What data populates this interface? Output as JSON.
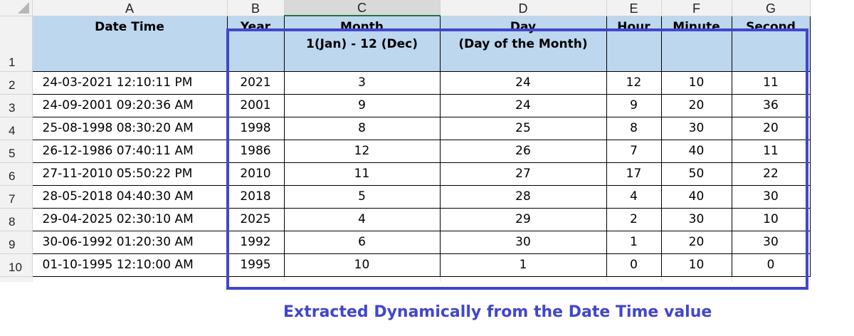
{
  "columns": [
    "A",
    "B",
    "C",
    "D",
    "E",
    "F",
    "G"
  ],
  "selected_column": "C",
  "row_numbers": [
    "1",
    "2",
    "3",
    "4",
    "5",
    "6",
    "7",
    "8",
    "9",
    "10"
  ],
  "headers": {
    "date_time": "Date Time",
    "year": "Year",
    "month": "Month\n1(Jan) - 12 (Dec)",
    "day": "Day\n(Day of the Month)",
    "hour": "Hour",
    "minute": "Minute",
    "second": "Second"
  },
  "rows": [
    [
      "24-03-2021 12:10:11 PM",
      "2021",
      "3",
      "24",
      "12",
      "10",
      "11"
    ],
    [
      "24-09-2001 09:20:36 AM",
      "2001",
      "9",
      "24",
      "9",
      "20",
      "36"
    ],
    [
      "25-08-1998 08:30:20 AM",
      "1998",
      "8",
      "25",
      "8",
      "30",
      "20"
    ],
    [
      "26-12-1986 07:40:11 AM",
      "1986",
      "12",
      "26",
      "7",
      "40",
      "11"
    ],
    [
      "27-11-2010 05:50:22 PM",
      "2010",
      "11",
      "27",
      "17",
      "50",
      "22"
    ],
    [
      "28-05-2018 04:40:30 AM",
      "2018",
      "5",
      "28",
      "4",
      "40",
      "30"
    ],
    [
      "29-04-2025 02:30:10 AM",
      "2025",
      "4",
      "29",
      "2",
      "30",
      "10"
    ],
    [
      "30-06-1992 01:20:30 AM",
      "1992",
      "6",
      "30",
      "1",
      "20",
      "30"
    ],
    [
      "01-10-1995 12:10:00 AM",
      "1995",
      "10",
      "1",
      "0",
      "10",
      "0"
    ]
  ],
  "caption": "Extracted Dynamically from the Date Time value",
  "colors": {
    "header_fill": "#bdd7ee",
    "highlight": "#4146cc",
    "selected_column_accent": "#217346"
  }
}
